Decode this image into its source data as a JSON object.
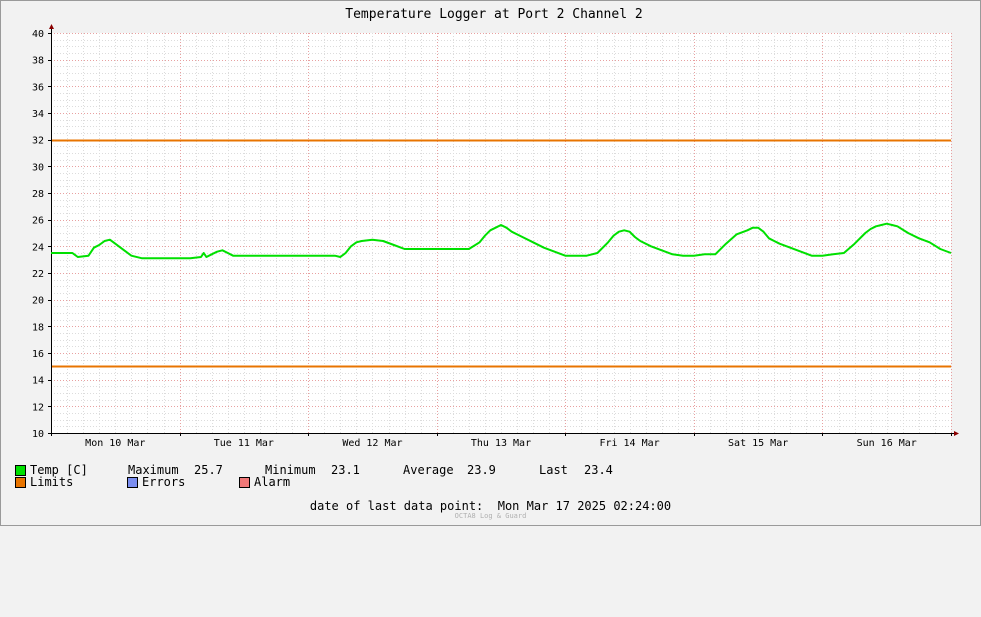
{
  "chart_data": {
    "type": "line",
    "title": "Temperature Logger at Port 2 Channel 2",
    "ylim": [
      10,
      40
    ],
    "y_ticks": [
      10,
      12,
      14,
      16,
      18,
      20,
      22,
      24,
      26,
      28,
      30,
      32,
      34,
      36,
      38,
      40
    ],
    "x_range_hours": [
      0,
      168
    ],
    "x_day_labels": [
      {
        "label": "Mon 10 Mar",
        "hour": 12
      },
      {
        "label": "Tue 11 Mar",
        "hour": 36
      },
      {
        "label": "Wed 12 Mar",
        "hour": 60
      },
      {
        "label": "Thu 13 Mar",
        "hour": 84
      },
      {
        "label": "Fri 14 Mar",
        "hour": 108
      },
      {
        "label": "Sat 15 Mar",
        "hour": 132
      },
      {
        "label": "Sun 16 Mar",
        "hour": 156
      }
    ],
    "grid": true,
    "limits": [
      {
        "name": "Limits",
        "value": 32.0,
        "color": "#e87400"
      },
      {
        "name": "Limits",
        "value": 15.0,
        "color": "#e87400"
      }
    ],
    "series": [
      {
        "name": "Temp [C]",
        "color": "#00e000",
        "x": [
          0,
          4,
          5,
          7,
          8,
          9,
          10,
          11,
          12,
          13,
          14,
          15,
          17,
          19,
          21,
          24,
          26,
          28,
          28.5,
          29,
          30,
          31,
          32,
          33,
          34,
          36,
          38,
          42,
          46,
          50,
          53,
          54,
          55,
          56,
          57,
          58,
          60,
          62,
          64,
          66,
          68,
          70,
          74,
          78,
          80,
          81,
          82,
          83,
          84,
          85,
          86,
          88,
          90,
          92,
          94,
          96,
          98,
          100,
          102,
          104,
          105,
          106,
          107,
          108,
          109,
          110,
          112,
          114,
          116,
          118,
          120,
          122,
          124,
          126,
          128,
          130,
          131,
          132,
          133,
          134,
          135,
          136,
          138,
          140,
          142,
          144,
          146,
          148,
          150,
          152,
          153,
          154,
          155,
          156,
          157,
          158,
          160,
          162,
          164,
          166,
          168
        ],
        "y": [
          23.5,
          23.5,
          23.2,
          23.3,
          23.9,
          24.1,
          24.4,
          24.5,
          24.2,
          23.9,
          23.6,
          23.3,
          23.1,
          23.1,
          23.1,
          23.1,
          23.1,
          23.2,
          23.5,
          23.2,
          23.4,
          23.6,
          23.7,
          23.5,
          23.3,
          23.3,
          23.3,
          23.3,
          23.3,
          23.3,
          23.3,
          23.2,
          23.5,
          24.0,
          24.3,
          24.4,
          24.5,
          24.4,
          24.1,
          23.8,
          23.8,
          23.8,
          23.8,
          23.8,
          24.3,
          24.8,
          25.2,
          25.4,
          25.6,
          25.4,
          25.1,
          24.7,
          24.3,
          23.9,
          23.6,
          23.3,
          23.3,
          23.3,
          23.5,
          24.3,
          24.8,
          25.1,
          25.2,
          25.1,
          24.7,
          24.4,
          24.0,
          23.7,
          23.4,
          23.3,
          23.3,
          23.4,
          23.4,
          24.2,
          24.9,
          25.2,
          25.4,
          25.4,
          25.1,
          24.6,
          24.4,
          24.2,
          23.9,
          23.6,
          23.3,
          23.3,
          23.4,
          23.5,
          24.2,
          25.0,
          25.3,
          25.5,
          25.6,
          25.7,
          25.6,
          25.5,
          25.0,
          24.6,
          24.3,
          23.8,
          23.5
        ]
      }
    ]
  },
  "legend": {
    "temp_label": "Temp [C]",
    "max_label": "Maximum",
    "max_value": "25.7",
    "min_label": "Minimum",
    "min_value": "23.1",
    "avg_label": "Average",
    "avg_value": "23.9",
    "last_label": "Last",
    "last_value": "23.4",
    "limits_label": "Limits",
    "errors_label": "Errors",
    "alarm_label": "Alarm",
    "temp_color": "#00e000",
    "limits_color": "#e87400",
    "errors_color": "#7b8ef0",
    "alarm_color": "#f07878"
  },
  "footer": {
    "date_label": "date of last data point:",
    "date_value": "Mon Mar 17 2025 02:24:00",
    "watermark": "OCTA8 Log & Guard"
  }
}
